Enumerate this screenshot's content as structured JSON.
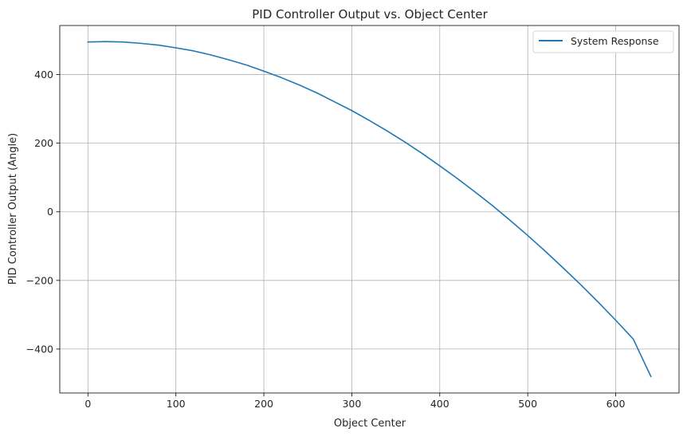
{
  "chart_data": {
    "type": "line",
    "title": "PID Controller Output vs. Object Center",
    "xlabel": "Object Center",
    "ylabel": "PID Controller Output (Angle)",
    "xlim": [
      -32,
      672
    ],
    "ylim": [
      -528,
      543
    ],
    "xticks": [
      0,
      100,
      200,
      300,
      400,
      500,
      600
    ],
    "yticks": [
      -400,
      -200,
      0,
      200,
      400
    ],
    "xtick_labels": [
      "0",
      "100",
      "200",
      "300",
      "400",
      "500",
      "600"
    ],
    "ytick_labels": [
      "−400",
      "−200",
      "0",
      "200",
      "400"
    ],
    "grid": true,
    "legend_position": "top-right",
    "series": [
      {
        "name": "System Response",
        "color": "#1f77b4",
        "x": [
          0,
          20,
          40,
          60,
          80,
          100,
          120,
          140,
          160,
          180,
          200,
          220,
          240,
          260,
          280,
          300,
          320,
          340,
          360,
          380,
          400,
          420,
          440,
          460,
          480,
          500,
          520,
          540,
          560,
          580,
          600,
          620,
          640
        ],
        "y": [
          495,
          496,
          495,
          491,
          486,
          478,
          469,
          457,
          443,
          428,
          410,
          391,
          370,
          347,
          321,
          295,
          266,
          236,
          204,
          170,
          134,
          97,
          58,
          18,
          -25,
          -69,
          -115,
          -163,
          -212,
          -263,
          -316,
          -371,
          -480
        ]
      }
    ]
  }
}
